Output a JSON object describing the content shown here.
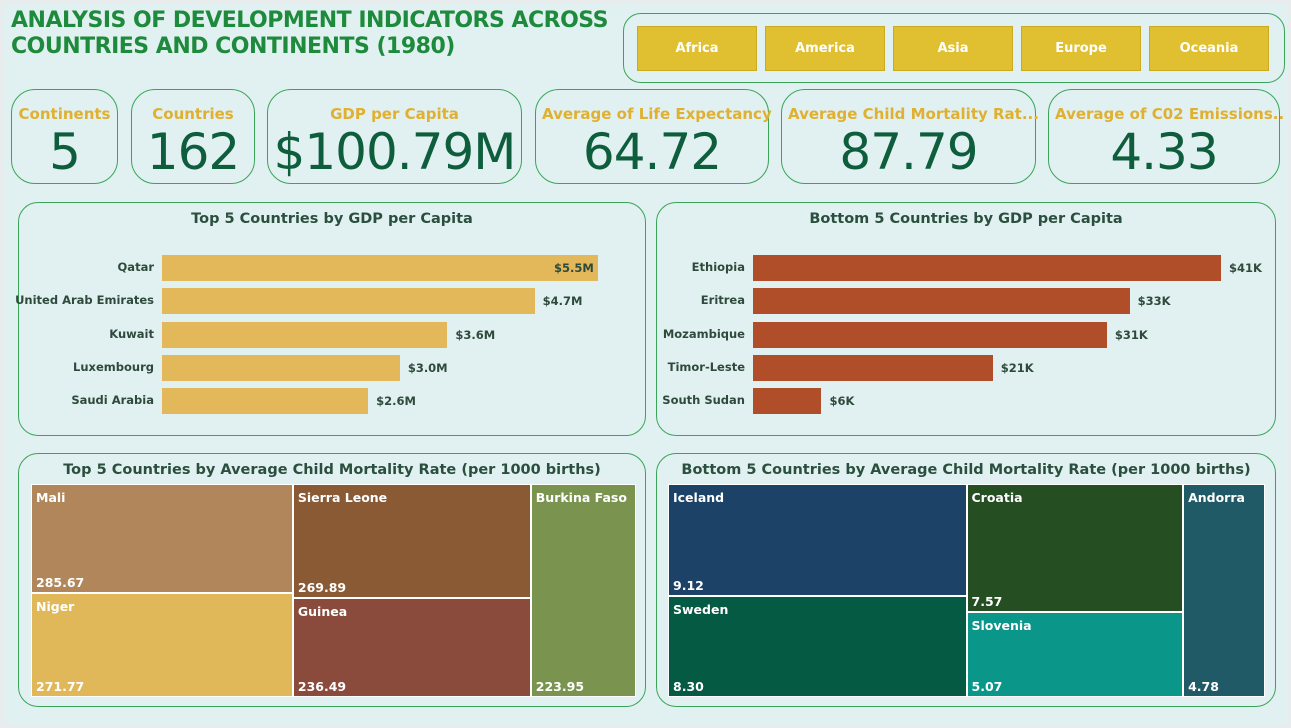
{
  "title": "ANALYSIS OF DEVELOPMENT INDICATORS ACROSS COUNTRIES AND CONTINENTS (1980)",
  "slicer": {
    "options": [
      "Africa",
      "America",
      "Asia",
      "Europe",
      "Oceania"
    ]
  },
  "kpis": [
    {
      "label": "Continents",
      "value": "5"
    },
    {
      "label": "Countries",
      "value": "162"
    },
    {
      "label": "GDP per Capita",
      "value": "$100.79M"
    },
    {
      "label": "Average of Life Expectancy",
      "value": "64.72"
    },
    {
      "label": "Average Child Mortality Rat...",
      "value": "87.79"
    },
    {
      "label": "Average of C02 Emissions..",
      "value": "4.33"
    }
  ],
  "colors": {
    "title": "#1d8a3c",
    "slicer_button": "#e0c030",
    "kpi_label": "#e0b030",
    "kpi_value": "#0e5e3e",
    "top_bar": "#e2b85a",
    "bottom_bar": "#b04e2a",
    "panel_border": "#3aa55a"
  },
  "chart_data": [
    {
      "type": "bar",
      "orientation": "horizontal",
      "title": "Top 5 Countries by GDP per Capita",
      "categories": [
        "Qatar",
        "United Arab Emirates",
        "Kuwait",
        "Luxembourg",
        "Saudi Arabia"
      ],
      "values": [
        5.5,
        4.7,
        3.6,
        3.0,
        2.6
      ],
      "labels": [
        "$5.5M",
        "$4.7M",
        "$3.6M",
        "$3.0M",
        "$2.6M"
      ],
      "color": "#e2b85a"
    },
    {
      "type": "bar",
      "orientation": "horizontal",
      "title": "Bottom 5 Countries by GDP per Capita",
      "categories": [
        "Ethiopia",
        "Eritrea",
        "Mozambique",
        "Timor-Leste",
        "South Sudan"
      ],
      "values": [
        41,
        33,
        31,
        21,
        6
      ],
      "labels": [
        "$41K",
        "$33K",
        "$31K",
        "$21K",
        "$6K"
      ],
      "color": "#b04e2a"
    },
    {
      "type": "treemap",
      "title": "Top 5 Countries by Average Child Mortality Rate (per 1000 births)",
      "items": [
        {
          "name": "Mali",
          "value": 285.67,
          "label": "285.67",
          "color": "#b0865a"
        },
        {
          "name": "Niger",
          "value": 271.77,
          "label": "271.77",
          "color": "#e0b85a"
        },
        {
          "name": "Sierra Leone",
          "value": 269.89,
          "label": "269.89",
          "color": "#8a5a34"
        },
        {
          "name": "Guinea",
          "value": 236.49,
          "label": "236.49",
          "color": "#8a4a3c"
        },
        {
          "name": "Burkina Faso",
          "value": 223.95,
          "label": "223.95",
          "color": "#7a9450"
        }
      ]
    },
    {
      "type": "treemap",
      "title": "Bottom 5 Countries by Average Child Mortality Rate (per 1000 births)",
      "items": [
        {
          "name": "Iceland",
          "value": 9.12,
          "label": "9.12",
          "color": "#1c4268"
        },
        {
          "name": "Sweden",
          "value": 8.3,
          "label": "8.30",
          "color": "#055a44"
        },
        {
          "name": "Croatia",
          "value": 7.57,
          "label": "7.57",
          "color": "#254f22"
        },
        {
          "name": "Slovenia",
          "value": 5.07,
          "label": "5.07",
          "color": "#0a9688"
        },
        {
          "name": "Andorra",
          "value": 4.78,
          "label": "4.78",
          "color": "#1f5a66"
        }
      ]
    }
  ]
}
